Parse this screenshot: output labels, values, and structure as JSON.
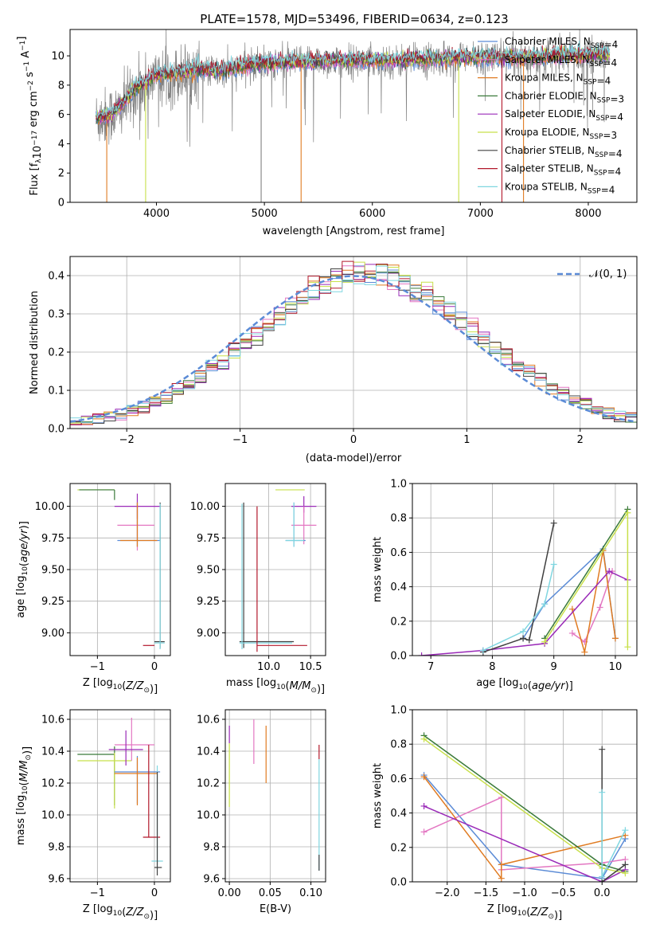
{
  "figure": {
    "title": "PLATE=1578, MJD=53496, FIBERID=0634, z=0.123"
  },
  "series_styles": [
    {
      "name": "Chabrier MILES, N_SSP=4",
      "prefix": "Chabrier MILES, N",
      "sub": "SSP",
      "suffix": "=4",
      "color": "#5b8bd6"
    },
    {
      "name": "Salpeter MILES, N_SSP=4",
      "prefix": "Salpeter MILES, N",
      "sub": "SSP",
      "suffix": "=4",
      "color": "#e377c2"
    },
    {
      "name": "Kroupa MILES, N_SSP=4",
      "prefix": "Kroupa MILES, N",
      "sub": "SSP",
      "suffix": "=4",
      "color": "#e07b22"
    },
    {
      "name": "Chabrier ELODIE, N_SSP=3",
      "prefix": "Chabrier ELODIE, N",
      "sub": "SSP",
      "suffix": "=3",
      "color": "#3a7a3a"
    },
    {
      "name": "Salpeter ELODIE, N_SSP=4",
      "prefix": "Salpeter ELODIE, N",
      "sub": "SSP",
      "suffix": "=4",
      "color": "#9a2ab8"
    },
    {
      "name": "Kroupa ELODIE, N_SSP=3",
      "prefix": "Kroupa ELODIE, N",
      "sub": "SSP",
      "suffix": "=3",
      "color": "#c8e04a"
    },
    {
      "name": "Chabrier STELIB, N_SSP=4",
      "prefix": "Chabrier STELIB, N",
      "sub": "SSP",
      "suffix": "=4",
      "color": "#404040"
    },
    {
      "name": "Salpeter STELIB, N_SSP=4",
      "prefix": "Salpeter STELIB, N",
      "sub": "SSP",
      "suffix": "=4",
      "color": "#b2182b"
    },
    {
      "name": "Kroupa STELIB, N_SSP=4",
      "prefix": "Kroupa STELIB, N",
      "sub": "SSP",
      "suffix": "=4",
      "color": "#7fd6e0"
    }
  ],
  "chart_data": [
    {
      "id": "spectrum",
      "type": "line",
      "xlabel": "wavelength [Angstrom, rest frame]",
      "ylabel": "Flux [f_λ 10^-17 erg cm^-2 s^-1 A^-1]",
      "xlim": [
        3200,
        8450
      ],
      "ylim": [
        0,
        11.8
      ],
      "xticks": [
        4000,
        5000,
        6000,
        7000,
        8000
      ],
      "yticks": [
        0,
        2,
        4,
        6,
        8,
        10
      ],
      "grid": false,
      "legend_position": "right",
      "data_color": "#808080",
      "data": {
        "x": [
          3440,
          3550,
          3650,
          3800,
          4000,
          4200,
          4400,
          4600,
          4800,
          5000,
          5200,
          5400,
          5600,
          5800,
          6000,
          6200,
          6400,
          6600,
          6800,
          7000,
          7200,
          7400,
          7600,
          7800,
          8000,
          8200
        ],
        "y": [
          5.7,
          5.9,
          6.2,
          7.6,
          8.6,
          8.7,
          9.0,
          8.9,
          9.2,
          9.4,
          9.5,
          9.6,
          9.6,
          9.6,
          9.7,
          9.6,
          9.7,
          9.8,
          9.9,
          9.9,
          9.9,
          9.9,
          9.9,
          10.0,
          10.0,
          10.0
        ]
      },
      "model": {
        "x": [
          3440,
          3550,
          3650,
          3800,
          4000,
          4200,
          4400,
          4600,
          4800,
          5000,
          5200,
          5400,
          5600,
          5800,
          6000,
          6200,
          6400,
          6600,
          6800,
          7000,
          7200,
          7400,
          7600,
          7800,
          8000,
          8200
        ],
        "y": [
          5.8,
          5.9,
          6.4,
          7.8,
          8.7,
          8.8,
          9.1,
          9.0,
          9.3,
          9.5,
          9.6,
          9.6,
          9.7,
          9.7,
          9.7,
          9.7,
          9.8,
          9.8,
          9.9,
          9.9,
          9.9,
          9.9,
          10.0,
          10.0,
          10.1,
          10.1
        ]
      },
      "dropouts": [
        {
          "x": 3540,
          "series": "Kroupa MILES, N_SSP=4"
        },
        {
          "x": 3900,
          "series": "Kroupa ELODIE, N_SSP=3"
        },
        {
          "x": 4970,
          "series": "data"
        },
        {
          "x": 5340,
          "series": "Kroupa MILES, N_SSP=4"
        },
        {
          "x": 6800,
          "series": "Kroupa ELODIE, N_SSP=3"
        },
        {
          "x": 7200,
          "series": "Salpeter STELIB, N_SSP=4"
        },
        {
          "x": 7400,
          "series": "Kroupa MILES, N_SSP=4"
        }
      ]
    },
    {
      "id": "residuals",
      "type": "histogram",
      "xlabel": "(data-model)/error",
      "ylabel": "Normed distribution",
      "xlim": [
        -2.5,
        2.5
      ],
      "ylim": [
        0,
        0.45
      ],
      "xticks": [
        -2,
        -1,
        0,
        1,
        2
      ],
      "yticks": [
        0.0,
        0.1,
        0.2,
        0.3,
        0.4
      ],
      "grid": true,
      "legend_position": "top-right",
      "normal_curve": {
        "label": "𝒩(0, 1)",
        "mu": 0,
        "sigma": 1,
        "color": "#5b8bd6"
      },
      "bins": {
        "start": -2.5,
        "width": 0.1,
        "count": 50
      }
    },
    {
      "id": "age_vs_Z",
      "type": "errorbar",
      "xlabel": "Z [log10(Z/Z☉)]",
      "ylabel": "age [log10(age/yr)]",
      "xlim": [
        -1.48,
        0.28
      ],
      "ylim": [
        8.82,
        10.18
      ],
      "xticks": [
        -1,
        0
      ],
      "yticks": [
        9.0,
        9.25,
        9.5,
        9.75,
        10.0
      ],
      "grid": true,
      "points": [
        {
          "series": "Kroupa ELODIE, N_SSP=3",
          "x": -0.7,
          "xerr": [
            0.65,
            0.0
          ],
          "y": 10.13,
          "yerr": [
            0.0,
            0.0
          ]
        },
        {
          "series": "Chabrier ELODIE, N_SSP=3",
          "x": -0.7,
          "xerr": [
            0.62,
            0.0
          ],
          "y": 10.13,
          "yerr": [
            0.08,
            0.0
          ]
        },
        {
          "series": "Salpeter ELODIE, N_SSP=4",
          "x": -0.3,
          "xerr": [
            0.4,
            0.4
          ],
          "y": 10.0,
          "yerr": [
            0.1,
            0.1
          ]
        },
        {
          "series": "Salpeter MILES, N_SSP=4",
          "x": -0.3,
          "xerr": [
            0.35,
            0.3
          ],
          "y": 9.85,
          "yerr": [
            0.2,
            0.15
          ]
        },
        {
          "series": "Chabrier MILES, N_SSP=4",
          "x": -0.3,
          "xerr": [
            0.35,
            0.4
          ],
          "y": 9.73,
          "yerr": [
            0.05,
            0.3
          ]
        },
        {
          "series": "Kroupa MILES, N_SSP=4",
          "x": -0.3,
          "xerr": [
            0.3,
            0.35
          ],
          "y": 9.73,
          "yerr": [
            0.05,
            0.3
          ]
        },
        {
          "series": "Chabrier STELIB, N_SSP=4",
          "x": 0.1,
          "xerr": [
            0.1,
            0.08
          ],
          "y": 8.93,
          "yerr": [
            0.05,
            1.1
          ]
        },
        {
          "series": "Kroupa STELIB, N_SSP=4",
          "x": 0.1,
          "xerr": [
            0.1,
            0.08
          ],
          "y": 8.92,
          "yerr": [
            0.05,
            1.1
          ]
        },
        {
          "series": "Salpeter STELIB, N_SSP=4",
          "x": -0.1,
          "xerr": [
            0.1,
            0.1
          ],
          "y": 8.9,
          "yerr": [
            0.0,
            0.0
          ]
        }
      ]
    },
    {
      "id": "age_vs_mass",
      "type": "errorbar",
      "xlabel": "mass [log10(M/M☉)]",
      "ylabel": "",
      "xlim": [
        9.48,
        10.68
      ],
      "ylim": [
        8.82,
        10.18
      ],
      "xticks": [
        10.0,
        10.5
      ],
      "yticks": [
        9.0,
        9.25,
        9.5,
        9.75,
        10.0
      ],
      "grid": true,
      "points": [
        {
          "series": "Kroupa ELODIE, N_SSP=3",
          "x": 10.38,
          "xerr": [
            0.3,
            0.05
          ],
          "y": 10.13,
          "yerr": [
            0.0,
            0.0
          ]
        },
        {
          "series": "Salpeter ELODIE, N_SSP=4",
          "x": 10.42,
          "xerr": [
            0.15,
            0.15
          ],
          "y": 10.0,
          "yerr": [
            0.05,
            0.08
          ]
        },
        {
          "series": "Salpeter MILES, N_SSP=4",
          "x": 10.42,
          "xerr": [
            0.15,
            0.15
          ],
          "y": 9.85,
          "yerr": [
            0.15,
            0.15
          ]
        },
        {
          "series": "Chabrier MILES, N_SSP=4",
          "x": 10.3,
          "xerr": [
            0.1,
            0.14
          ],
          "y": 9.73,
          "yerr": [
            0.05,
            0.3
          ]
        },
        {
          "series": "Kroupa STELIB, N_SSP=4",
          "x": 10.3,
          "xerr": [
            0.1,
            0.12
          ],
          "y": 9.73,
          "yerr": [
            0.05,
            0.3
          ]
        },
        {
          "series": "Chabrier STELIB, N_SSP=4",
          "x": 9.7,
          "xerr": [
            0.05,
            0.6
          ],
          "y": 8.93,
          "yerr": [
            0.05,
            1.1
          ]
        },
        {
          "series": "Kroupa STELIB, N_SSP=4",
          "x": 9.68,
          "xerr": [
            0.03,
            0.6
          ],
          "y": 8.92,
          "yerr": [
            0.05,
            1.1
          ]
        },
        {
          "series": "Salpeter STELIB, N_SSP=4",
          "x": 9.86,
          "xerr": [
            0.0,
            0.6
          ],
          "y": 8.9,
          "yerr": [
            0.05,
            1.1
          ]
        }
      ]
    },
    {
      "id": "mass_weight_vs_age",
      "type": "line",
      "xlabel": "age [log10(age/yr)]",
      "ylabel": "mass weight",
      "xlim": [
        6.7,
        10.35
      ],
      "ylim": [
        0,
        1
      ],
      "xticks": [
        7,
        8,
        9,
        10
      ],
      "yticks": [
        0.0,
        0.2,
        0.4,
        0.6,
        0.8,
        1.0
      ],
      "grid": true,
      "series": [
        {
          "name": "Chabrier MILES, N_SSP=4",
          "x": [
            8.5,
            8.85,
            9.8,
            10.0
          ],
          "y": [
            0.1,
            0.3,
            0.62,
            0.1
          ]
        },
        {
          "name": "Salpeter MILES, N_SSP=4",
          "x": [
            9.3,
            9.5,
            9.75,
            9.95
          ],
          "y": [
            0.13,
            0.08,
            0.28,
            0.49
          ]
        },
        {
          "name": "Kroupa MILES, N_SSP=4",
          "x": [
            9.3,
            9.5,
            9.8,
            10.0
          ],
          "y": [
            0.27,
            0.02,
            0.61,
            0.1
          ]
        },
        {
          "name": "Chabrier ELODIE, N_SSP=3",
          "x": [
            8.85,
            10.2
          ],
          "y": [
            0.1,
            0.85
          ]
        },
        {
          "name": "Salpeter ELODIE, N_SSP=4",
          "x": [
            6.85,
            7.85,
            8.85,
            9.9,
            10.2
          ],
          "y": [
            0.0,
            0.03,
            0.07,
            0.49,
            0.44
          ]
        },
        {
          "name": "Kroupa ELODIE, N_SSP=3",
          "x": [
            8.85,
            10.2,
            10.2
          ],
          "y": [
            0.08,
            0.83,
            0.05
          ]
        },
        {
          "name": "Chabrier STELIB, N_SSP=4",
          "x": [
            7.85,
            8.5,
            8.6,
            9.0
          ],
          "y": [
            0.02,
            0.1,
            0.09,
            0.77
          ]
        },
        {
          "name": "Kroupa STELIB, N_SSP=4",
          "x": [
            7.85,
            8.5,
            8.85,
            9.0
          ],
          "y": [
            0.03,
            0.14,
            0.3,
            0.53
          ]
        }
      ]
    },
    {
      "id": "mass_vs_Z",
      "type": "errorbar",
      "xlabel": "Z [log10(Z/Z☉)]",
      "ylabel": "mass [log10(M/M☉)]",
      "xlim": [
        -1.48,
        0.28
      ],
      "ylim": [
        9.58,
        10.66
      ],
      "xticks": [
        -1,
        0
      ],
      "yticks": [
        9.6,
        9.8,
        10.0,
        10.2,
        10.4,
        10.6
      ],
      "grid": true,
      "points": [
        {
          "series": "Chabrier ELODIE, N_SSP=3",
          "x": -0.7,
          "xerr": [
            0.65,
            0.0
          ],
          "y": 10.38,
          "yerr": [
            0.32,
            0.05
          ]
        },
        {
          "series": "Kroupa ELODIE, N_SSP=3",
          "x": -0.7,
          "xerr": [
            0.65,
            0.3
          ],
          "y": 10.34,
          "yerr": [
            0.3,
            0.05
          ]
        },
        {
          "series": "Salpeter MILES, N_SSP=4",
          "x": -0.4,
          "xerr": [
            0.3,
            0.4
          ],
          "y": 10.44,
          "yerr": [
            0.1,
            0.17
          ]
        },
        {
          "series": "Salpeter ELODIE, N_SSP=4",
          "x": -0.5,
          "xerr": [
            0.3,
            0.3
          ],
          "y": 10.41,
          "yerr": [
            0.1,
            0.12
          ]
        },
        {
          "series": "Chabrier MILES, N_SSP=4",
          "x": -0.3,
          "xerr": [
            0.4,
            0.4
          ],
          "y": 10.27,
          "yerr": [
            0.2,
            0.1
          ]
        },
        {
          "series": "Kroupa MILES, N_SSP=4",
          "x": -0.3,
          "xerr": [
            0.4,
            0.35
          ],
          "y": 10.26,
          "yerr": [
            0.2,
            0.1
          ]
        },
        {
          "series": "Salpeter STELIB, N_SSP=4",
          "x": -0.1,
          "xerr": [
            0.1,
            0.2
          ],
          "y": 9.86,
          "yerr": [
            0.0,
            0.58
          ]
        },
        {
          "series": "Kroupa STELIB, N_SSP=4",
          "x": 0.05,
          "xerr": [
            0.1,
            0.1
          ],
          "y": 9.71,
          "yerr": [
            0.05,
            0.6
          ]
        },
        {
          "series": "Chabrier STELIB, N_SSP=4",
          "x": 0.05,
          "xerr": [
            0.05,
            0.08
          ],
          "y": 9.67,
          "yerr": [
            0.05,
            0.6
          ]
        }
      ]
    },
    {
      "id": "mass_vs_EBV",
      "type": "errorbar",
      "xlabel": "E(B-V)",
      "ylabel": "",
      "xlim": [
        -0.005,
        0.118
      ],
      "ylim": [
        9.58,
        10.66
      ],
      "xticks": [
        0.0,
        0.05,
        0.1
      ],
      "yticks": [
        9.6,
        9.8,
        10.0,
        10.2,
        10.4,
        10.6
      ],
      "grid": true,
      "points": [
        {
          "series": "Salpeter ELODIE, N_SSP=4",
          "x": 0.0,
          "xerr": [
            0,
            0
          ],
          "y": 10.5,
          "yerr": [
            0.05,
            0.06
          ]
        },
        {
          "series": "Kroupa ELODIE, N_SSP=3",
          "x": 0.0,
          "xerr": [
            0,
            0
          ],
          "y": 10.3,
          "yerr": [
            0.25,
            0.15
          ]
        },
        {
          "series": "Salpeter MILES, N_SSP=4",
          "x": 0.03,
          "xerr": [
            0,
            0
          ],
          "y": 10.46,
          "yerr": [
            0.14,
            0.14
          ]
        },
        {
          "series": "Kroupa MILES, N_SSP=4",
          "x": 0.045,
          "xerr": [
            0,
            0
          ],
          "y": 10.4,
          "yerr": [
            0.2,
            0.16
          ]
        },
        {
          "series": "Salpeter STELIB, N_SSP=4",
          "x": 0.11,
          "xerr": [
            0,
            0
          ],
          "y": 10.39,
          "yerr": [
            0.04,
            0.05
          ]
        },
        {
          "series": "Kroupa STELIB, N_SSP=4",
          "x": 0.11,
          "xerr": [
            0,
            0
          ],
          "y": 10.0,
          "yerr": [
            0.35,
            0.35
          ]
        },
        {
          "series": "Chabrier STELIB, N_SSP=4",
          "x": 0.11,
          "xerr": [
            0,
            0
          ],
          "y": 9.7,
          "yerr": [
            0.05,
            0.05
          ]
        }
      ]
    },
    {
      "id": "mass_weight_vs_Z",
      "type": "line",
      "xlabel": "Z [log10(Z/Z☉)]",
      "ylabel": "mass weight",
      "xlim": [
        -2.45,
        0.45
      ],
      "ylim": [
        0,
        1
      ],
      "xticks": [
        -2.0,
        -1.5,
        -1.0,
        -0.5,
        0.0
      ],
      "yticks": [
        0.0,
        0.2,
        0.4,
        0.6,
        0.8,
        1.0
      ],
      "grid": true,
      "series": [
        {
          "name": "Chabrier MILES, N_SSP=4",
          "x": [
            -2.3,
            -1.3,
            0.0,
            0.3
          ],
          "y": [
            0.62,
            0.1,
            0.02,
            0.25
          ]
        },
        {
          "name": "Salpeter MILES, N_SSP=4",
          "x": [
            -2.3,
            -1.3,
            -1.3,
            0.0,
            0.3
          ],
          "y": [
            0.29,
            0.49,
            0.07,
            0.11,
            0.13
          ]
        },
        {
          "name": "Kroupa MILES, N_SSP=4",
          "x": [
            -2.3,
            -1.3,
            -1.3,
            0.3
          ],
          "y": [
            0.61,
            0.02,
            0.1,
            0.27
          ]
        },
        {
          "name": "Chabrier ELODIE, N_SSP=3",
          "x": [
            -2.3,
            0.0,
            0.3
          ],
          "y": [
            0.85,
            0.1,
            0.06
          ]
        },
        {
          "name": "Salpeter ELODIE, N_SSP=4",
          "x": [
            -2.3,
            0.0,
            0.3
          ],
          "y": [
            0.44,
            0.0,
            0.07
          ]
        },
        {
          "name": "Kroupa ELODIE, N_SSP=3",
          "x": [
            -2.3,
            0.0,
            0.3
          ],
          "y": [
            0.83,
            0.08,
            0.05
          ]
        },
        {
          "name": "Chabrier STELIB, N_SSP=4",
          "x": [
            0.0,
            0.0,
            0.3
          ],
          "y": [
            0.77,
            0.0,
            0.1
          ]
        },
        {
          "name": "Kroupa STELIB, N_SSP=4",
          "x": [
            0.0,
            0.0,
            0.3
          ],
          "y": [
            0.52,
            0.03,
            0.3
          ]
        }
      ]
    }
  ]
}
